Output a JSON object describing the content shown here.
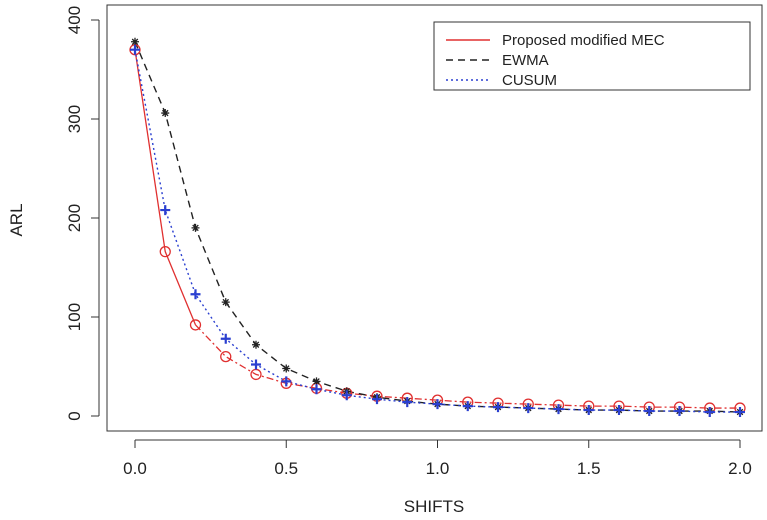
{
  "chart_data": {
    "type": "line",
    "title": "",
    "xlabel": "SHIFTS",
    "ylabel": "ARL",
    "xlim": [
      0.0,
      2.0
    ],
    "ylim": [
      0,
      400
    ],
    "x_ticks": [
      "0.0",
      "0.5",
      "1.0",
      "1.5",
      "2.0"
    ],
    "y_ticks": [
      "0",
      "100",
      "200",
      "300",
      "400"
    ],
    "grid": false,
    "legend_position": "top-right",
    "x": [
      0.0,
      0.1,
      0.2,
      0.3,
      0.4,
      0.5,
      0.6,
      0.7,
      0.8,
      0.9,
      1.0,
      1.1,
      1.2,
      1.3,
      1.4,
      1.5,
      1.6,
      1.7,
      1.8,
      1.9,
      2.0
    ],
    "series": [
      {
        "name": "Proposed modified MEC",
        "color": "#e03030",
        "marker": "circle",
        "values": [
          370,
          166,
          92,
          60,
          42,
          33,
          28,
          23,
          20,
          18,
          16,
          14,
          13,
          12,
          11,
          10,
          10,
          9,
          9,
          8,
          8
        ]
      },
      {
        "name": "EWMA",
        "color": "#222222",
        "marker": "star",
        "values": [
          378,
          306,
          190,
          115,
          72,
          48,
          35,
          25,
          19,
          15,
          12,
          10,
          9,
          8,
          7,
          6,
          6,
          5,
          5,
          5,
          4
        ]
      },
      {
        "name": "CUSUM",
        "color": "#2a3fd0",
        "marker": "plus",
        "values": [
          370,
          208,
          123,
          78,
          52,
          35,
          27,
          21,
          17,
          14,
          12,
          10,
          9,
          8,
          7,
          6,
          6,
          5,
          5,
          4,
          4
        ]
      }
    ]
  }
}
